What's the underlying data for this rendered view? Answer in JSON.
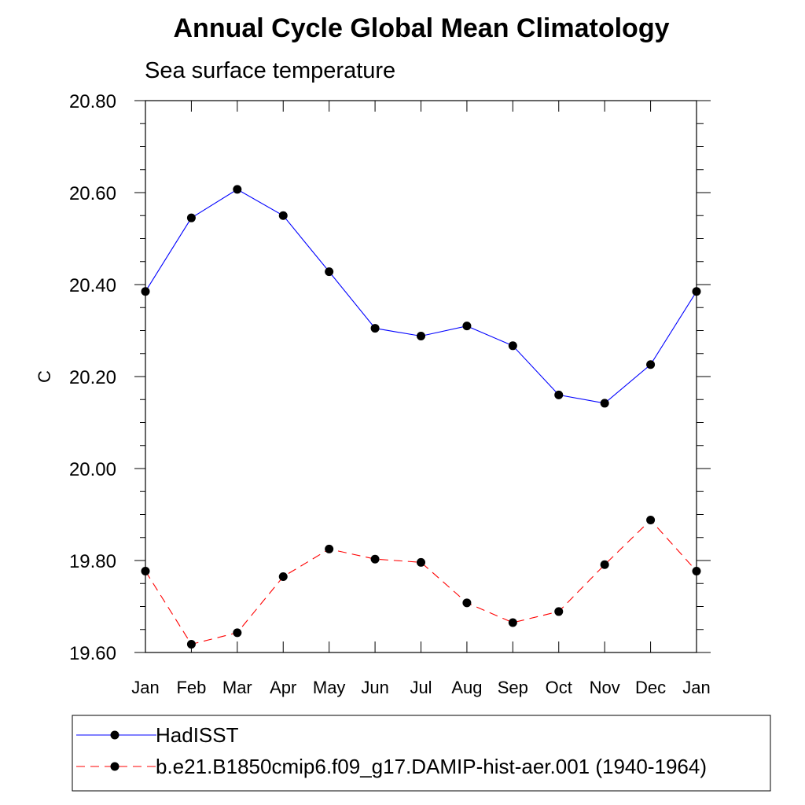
{
  "chart_data": {
    "type": "line",
    "title": "Annual Cycle Global Mean Climatology",
    "subtitle": "Sea surface temperature",
    "xlabel": "",
    "ylabel": "C",
    "categories": [
      "Jan",
      "Feb",
      "Mar",
      "Apr",
      "May",
      "Jun",
      "Jul",
      "Aug",
      "Sep",
      "Oct",
      "Nov",
      "Dec",
      "Jan"
    ],
    "ylim": [
      19.6,
      20.8
    ],
    "yticks": [
      "19.60",
      "19.80",
      "20.00",
      "20.20",
      "20.40",
      "20.60",
      "20.80"
    ],
    "ytick_values": [
      19.6,
      19.8,
      20.0,
      20.2,
      20.4,
      20.6,
      20.8
    ],
    "grid": false,
    "legend_position": "bottom",
    "series": [
      {
        "name": "HadISST",
        "color": "#0000ff",
        "style": "solid",
        "marker": "filled-circle",
        "values": [
          20.385,
          20.545,
          20.607,
          20.55,
          20.428,
          20.305,
          20.288,
          20.31,
          20.267,
          20.16,
          20.142,
          20.226,
          20.385
        ]
      },
      {
        "name": "b.e21.B1850cmip6.f09_g17.DAMIP-hist-aer.001 (1940-1964)",
        "color": "#ff0000",
        "style": "dashed",
        "marker": "filled-circle",
        "values": [
          19.777,
          19.618,
          19.643,
          19.765,
          19.825,
          19.803,
          19.796,
          19.708,
          19.665,
          19.689,
          19.791,
          19.888,
          19.777
        ]
      }
    ]
  }
}
